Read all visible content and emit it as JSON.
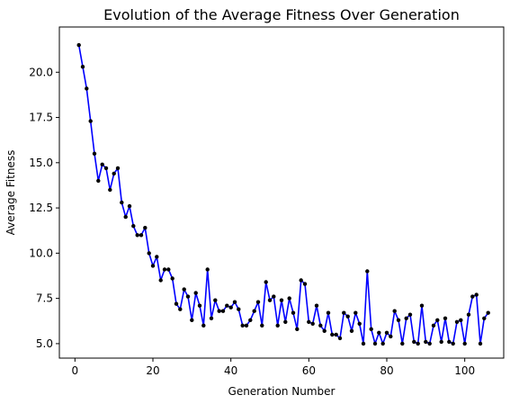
{
  "chart_data": {
    "type": "line",
    "title": "Evolution of the Average Fitness Over Generation",
    "xlabel": "Generation Number",
    "ylabel": "Average Fitness",
    "xlim": [
      -4,
      110
    ],
    "ylim": [
      4.2,
      22.5
    ],
    "xticks": [
      0,
      20,
      40,
      60,
      80,
      100
    ],
    "yticks": [
      5.0,
      7.5,
      10.0,
      12.5,
      15.0,
      17.5,
      20.0
    ],
    "ytick_labels": [
      "5.0",
      "7.5",
      "10.0",
      "12.5",
      "15.0",
      "17.5",
      "20.0"
    ],
    "grid": false,
    "line_color": "#0000ff",
    "marker_color": "#000000",
    "series": [
      {
        "x": [
          1,
          2,
          3,
          4,
          5,
          6,
          7,
          8,
          9,
          10,
          11,
          12,
          13,
          14,
          15,
          16,
          17,
          18,
          19,
          20,
          21,
          22,
          23,
          24,
          25,
          26,
          27,
          28,
          29,
          30,
          31,
          32,
          33,
          34,
          35,
          36,
          37,
          38,
          39,
          40,
          41,
          42,
          43,
          44,
          45,
          46,
          47,
          48,
          49,
          50,
          51,
          52,
          53,
          54,
          55,
          56,
          57,
          58,
          59,
          60,
          61,
          62,
          63,
          64,
          65,
          66,
          67,
          68,
          69,
          70,
          71,
          72,
          73,
          74,
          75,
          76,
          77,
          78,
          79,
          80,
          81,
          82,
          83,
          84,
          85,
          86,
          87,
          88,
          89,
          90,
          91,
          92,
          93,
          94,
          95,
          96,
          97,
          98,
          99,
          100,
          101,
          102,
          103,
          104,
          105,
          106
        ],
        "values": [
          21.5,
          20.3,
          19.1,
          17.3,
          15.5,
          14.0,
          14.9,
          14.7,
          13.5,
          14.4,
          14.7,
          12.8,
          12.0,
          12.6,
          11.5,
          11.0,
          11.0,
          11.4,
          10.0,
          9.3,
          9.8,
          8.5,
          9.1,
          9.1,
          8.6,
          7.2,
          6.9,
          8.0,
          7.6,
          6.3,
          7.8,
          7.1,
          6.0,
          9.1,
          6.4,
          7.4,
          6.8,
          6.8,
          7.1,
          7.0,
          7.3,
          6.9,
          6.0,
          6.0,
          6.3,
          6.8,
          7.3,
          6.0,
          8.4,
          7.4,
          7.6,
          6.0,
          7.4,
          6.2,
          7.5,
          6.7,
          5.8,
          8.5,
          8.3,
          6.2,
          6.1,
          7.1,
          6.0,
          5.7,
          6.7,
          5.5,
          5.5,
          5.3,
          6.7,
          6.5,
          5.7,
          6.7,
          6.1,
          5.0,
          9.0,
          5.8,
          5.0,
          5.6,
          5.0,
          5.6,
          5.4,
          6.8,
          6.3,
          5.0,
          6.4,
          6.6,
          5.1,
          5.0,
          7.1,
          5.1,
          5.0,
          6.0,
          6.3,
          5.1,
          6.4,
          5.1,
          5.0,
          6.2,
          6.3,
          5.0,
          6.6,
          7.6,
          7.7,
          5.0,
          6.4,
          6.7
        ]
      }
    ]
  }
}
